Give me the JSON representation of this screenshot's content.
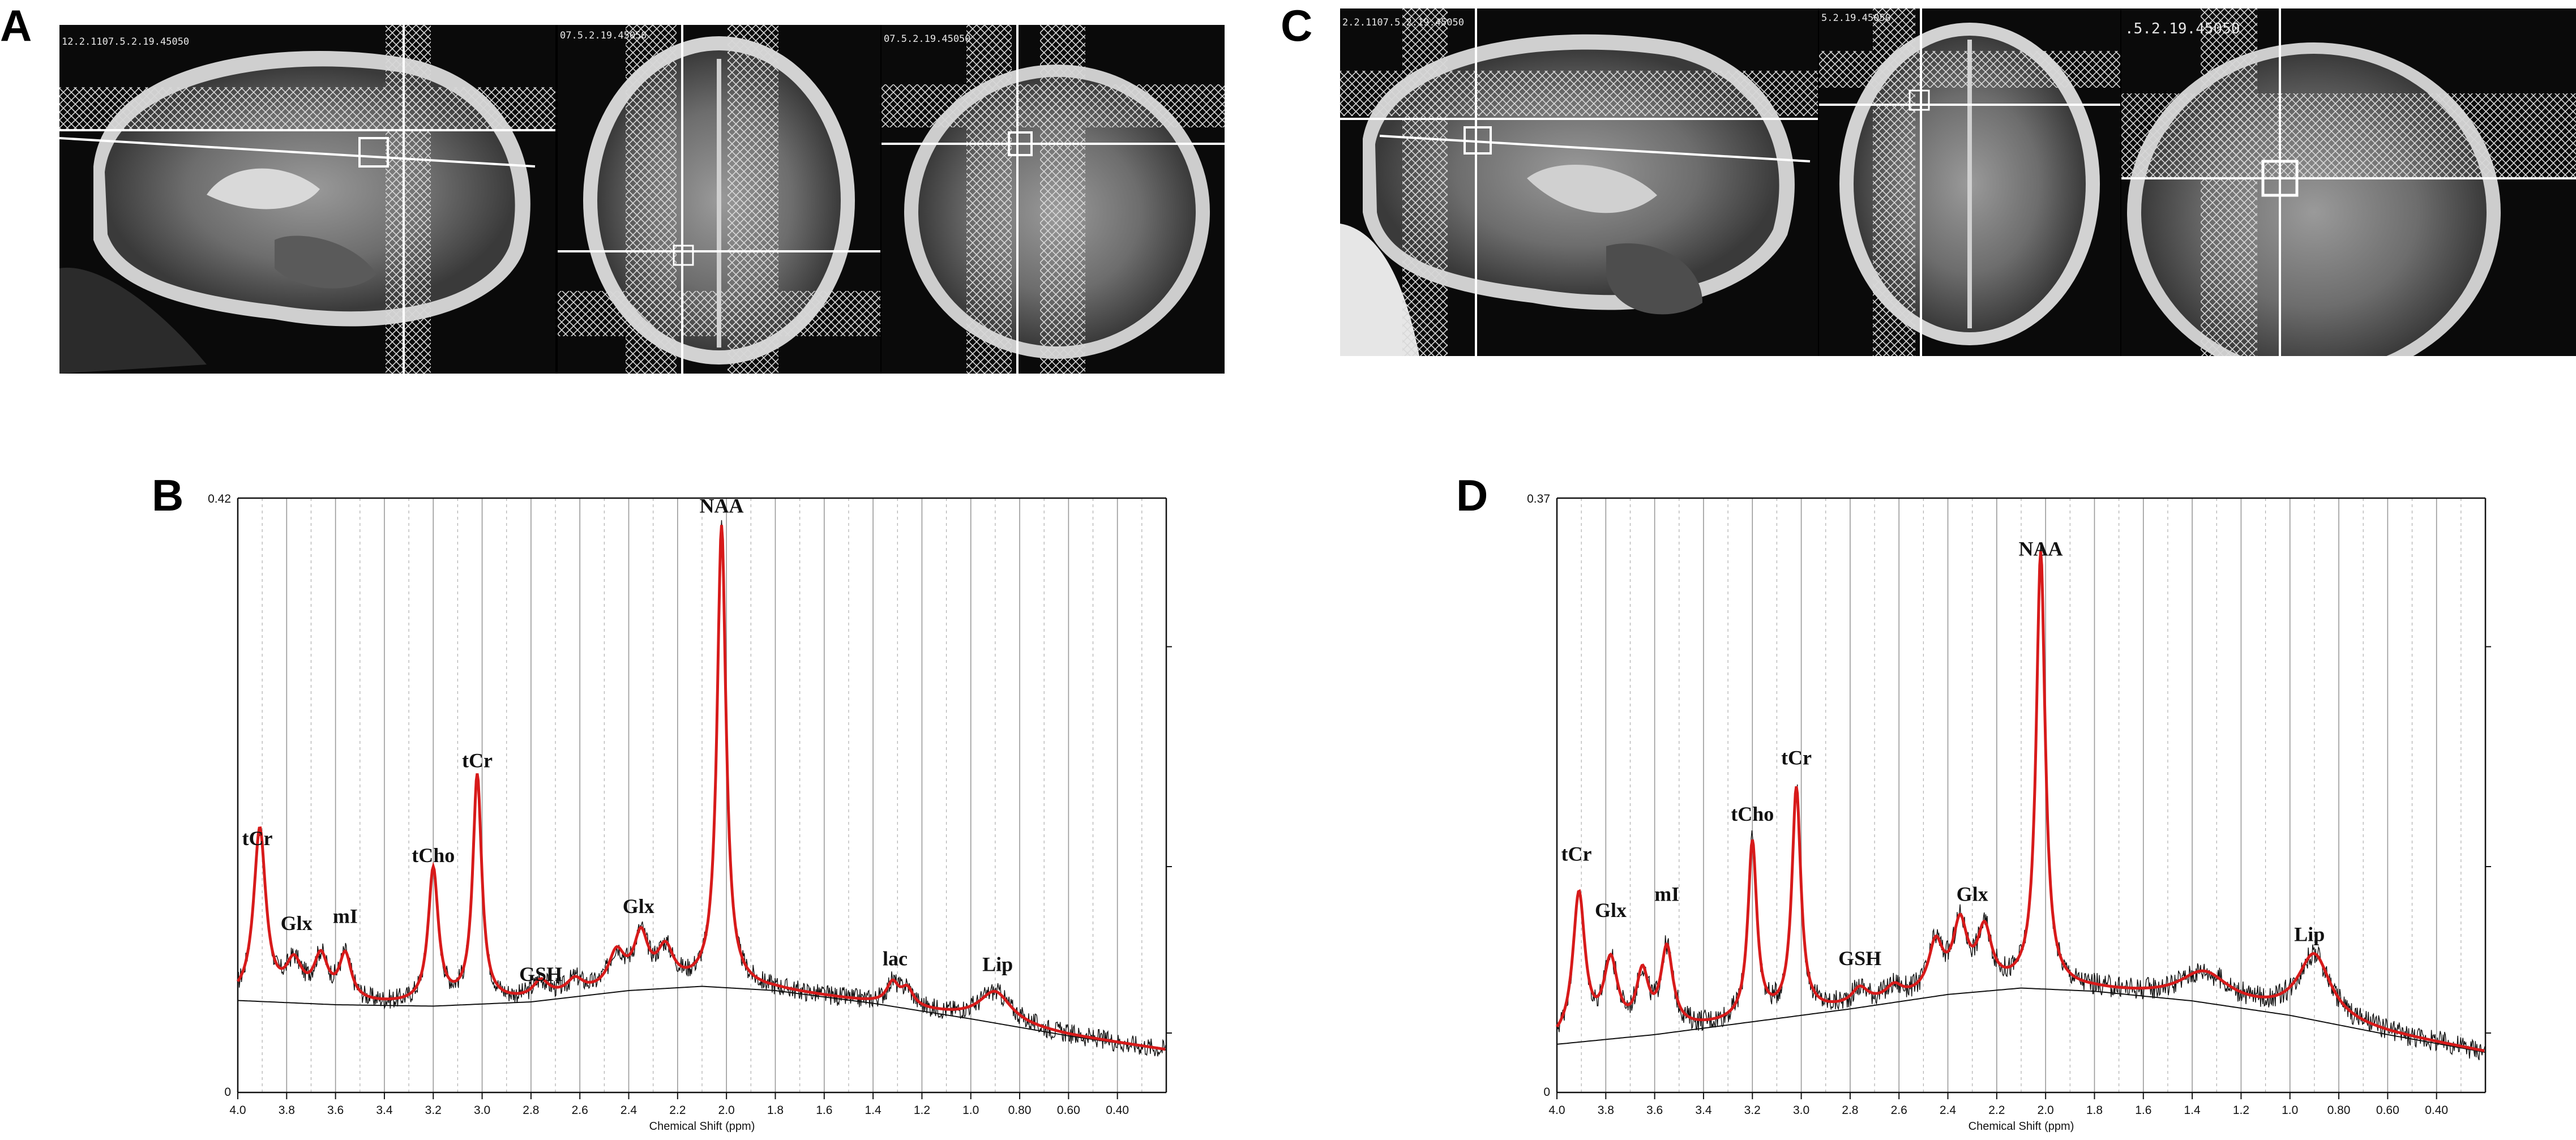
{
  "panels": {
    "a": {
      "label": "A",
      "views": [
        {
          "code": "12.2.1107.5.2.19.45050"
        },
        {
          "code": "07.5.2.19.45050"
        },
        {
          "code": "07.5.2.19.45050"
        }
      ]
    },
    "b": {
      "label": "B"
    },
    "c": {
      "label": "C",
      "views": [
        {
          "code": "2.2.1107.5.2.19.45050"
        },
        {
          "code": "5.2.19.45050"
        },
        {
          "code": ".5.2.19.45050"
        }
      ]
    },
    "d": {
      "label": "D"
    }
  },
  "colors": {
    "fit": "#d71a1a",
    "data": "#111111",
    "baseline": "#111111",
    "grid": "#777777"
  },
  "chart_data": [
    {
      "type": "line",
      "panel": "B",
      "xlabel": "Chemical Shift (ppm)",
      "xlim": [
        4.0,
        0.2
      ],
      "ylim": [
        0,
        0.42
      ],
      "x_ticks": [
        "4.0",
        "3.8",
        "3.6",
        "3.4",
        "3.2",
        "3.0",
        "2.8",
        "2.6",
        "2.4",
        "2.2",
        "2.0",
        "1.8",
        "1.6",
        "1.4",
        "1.2",
        "1.0",
        "0.80",
        "0.60",
        "0.40"
      ],
      "y_ticks": [
        "0",
        "0.42"
      ],
      "baseline": {
        "x": [
          4.0,
          3.6,
          3.2,
          2.8,
          2.4,
          2.1,
          1.8,
          1.4,
          1.0,
          0.6,
          0.2
        ],
        "y": [
          0.065,
          0.062,
          0.061,
          0.064,
          0.072,
          0.075,
          0.072,
          0.063,
          0.052,
          0.04,
          0.03
        ]
      },
      "peaks": [
        {
          "label": "tCr",
          "x": 3.92,
          "y": 0.17
        },
        {
          "label": "Glx",
          "x": 3.76,
          "y": 0.11
        },
        {
          "label": "mI",
          "x": 3.56,
          "y": 0.115
        },
        {
          "label": "tCho",
          "x": 3.2,
          "y": 0.158
        },
        {
          "label": "tCr",
          "x": 3.02,
          "y": 0.225
        },
        {
          "label": "GSH",
          "x": 2.76,
          "y": 0.074
        },
        {
          "label": "Glx",
          "x": 2.36,
          "y": 0.122
        },
        {
          "label": "NAA",
          "x": 2.02,
          "y": 0.405
        },
        {
          "label": "lac",
          "x": 1.31,
          "y": 0.085
        },
        {
          "label": "Lip",
          "x": 0.89,
          "y": 0.081
        }
      ],
      "fit_peaks": [
        {
          "x": 3.91,
          "h": 0.12,
          "w": 0.03
        },
        {
          "x": 3.77,
          "h": 0.025,
          "w": 0.04
        },
        {
          "x": 3.66,
          "h": 0.03,
          "w": 0.035
        },
        {
          "x": 3.56,
          "h": 0.032,
          "w": 0.03
        },
        {
          "x": 3.2,
          "h": 0.095,
          "w": 0.025
        },
        {
          "x": 3.02,
          "h": 0.16,
          "w": 0.022
        },
        {
          "x": 2.76,
          "h": 0.012,
          "w": 0.04
        },
        {
          "x": 2.62,
          "h": 0.01,
          "w": 0.04
        },
        {
          "x": 2.45,
          "h": 0.025,
          "w": 0.04
        },
        {
          "x": 2.35,
          "h": 0.035,
          "w": 0.035
        },
        {
          "x": 2.25,
          "h": 0.025,
          "w": 0.04
        },
        {
          "x": 2.02,
          "h": 0.325,
          "w": 0.022
        },
        {
          "x": 1.32,
          "h": 0.015,
          "w": 0.03
        },
        {
          "x": 1.26,
          "h": 0.012,
          "w": 0.03
        },
        {
          "x": 0.9,
          "h": 0.022,
          "w": 0.08
        }
      ]
    },
    {
      "type": "line",
      "panel": "D",
      "xlabel": "Chemical Shift (ppm)",
      "xlim": [
        4.0,
        0.2
      ],
      "ylim": [
        0,
        0.37
      ],
      "x_ticks": [
        "4.0",
        "3.8",
        "3.6",
        "3.4",
        "3.2",
        "3.0",
        "2.8",
        "2.6",
        "2.4",
        "2.2",
        "2.0",
        "1.8",
        "1.6",
        "1.4",
        "1.2",
        "1.0",
        "0.80",
        "0.60",
        "0.40"
      ],
      "y_ticks": [
        "0",
        "0.37"
      ],
      "baseline": {
        "x": [
          4.0,
          3.6,
          3.2,
          2.8,
          2.4,
          2.1,
          1.8,
          1.4,
          1.0,
          0.6,
          0.2
        ],
        "y": [
          0.03,
          0.036,
          0.044,
          0.052,
          0.061,
          0.065,
          0.063,
          0.057,
          0.048,
          0.036,
          0.025
        ]
      },
      "peaks": [
        {
          "label": "tCr",
          "x": 3.92,
          "y": 0.14
        },
        {
          "label": "Glx",
          "x": 3.78,
          "y": 0.105
        },
        {
          "label": "mI",
          "x": 3.55,
          "y": 0.115
        },
        {
          "label": "tCho",
          "x": 3.2,
          "y": 0.165
        },
        {
          "label": "tCr",
          "x": 3.02,
          "y": 0.2
        },
        {
          "label": "GSH",
          "x": 2.76,
          "y": 0.075
        },
        {
          "label": "Glx",
          "x": 2.3,
          "y": 0.115
        },
        {
          "label": "NAA",
          "x": 2.02,
          "y": 0.33
        },
        {
          "label": "Lip",
          "x": 0.92,
          "y": 0.09
        }
      ],
      "fit_peaks": [
        {
          "x": 3.91,
          "h": 0.09,
          "w": 0.03
        },
        {
          "x": 3.78,
          "h": 0.045,
          "w": 0.035
        },
        {
          "x": 3.65,
          "h": 0.035,
          "w": 0.03
        },
        {
          "x": 3.55,
          "h": 0.05,
          "w": 0.03
        },
        {
          "x": 3.2,
          "h": 0.11,
          "w": 0.022
        },
        {
          "x": 3.02,
          "h": 0.14,
          "w": 0.022
        },
        {
          "x": 2.76,
          "h": 0.01,
          "w": 0.04
        },
        {
          "x": 2.62,
          "h": 0.008,
          "w": 0.04
        },
        {
          "x": 2.45,
          "h": 0.03,
          "w": 0.035
        },
        {
          "x": 2.35,
          "h": 0.04,
          "w": 0.035
        },
        {
          "x": 2.25,
          "h": 0.035,
          "w": 0.035
        },
        {
          "x": 2.02,
          "h": 0.27,
          "w": 0.022
        },
        {
          "x": 1.35,
          "h": 0.018,
          "w": 0.12
        },
        {
          "x": 0.9,
          "h": 0.04,
          "w": 0.08
        }
      ]
    }
  ]
}
